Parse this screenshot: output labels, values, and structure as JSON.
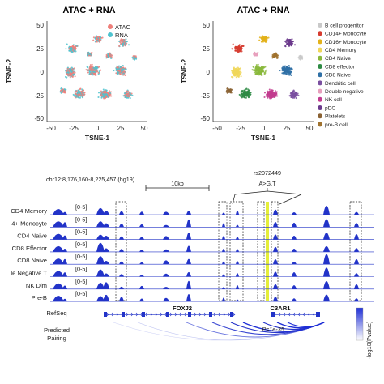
{
  "panels": {
    "left": {
      "title": "ATAC + RNA",
      "x_label": "TSNE-1",
      "y_label": "TSNE-2",
      "x_ticks": [
        "-50",
        "-25",
        "0",
        "25",
        "50"
      ],
      "y_ticks": [
        "50",
        "25",
        "0",
        "-25",
        "-50"
      ],
      "legend": [
        {
          "label": "ATAC",
          "color": "#ef7f7a"
        },
        {
          "label": "RNA",
          "color": "#4ec3cf"
        }
      ]
    },
    "right": {
      "title": "ATAC + RNA",
      "x_label": "TSNE-1",
      "y_label": "TSNE-2",
      "x_ticks": [
        "-50",
        "-25",
        "0",
        "25",
        "50"
      ],
      "y_ticks": [
        "50",
        "25",
        "0",
        "-25",
        "-50"
      ],
      "legend": [
        {
          "label": "B cell progenitor",
          "color": "#c9c9c9"
        },
        {
          "label": "CD14+ Monocyte",
          "color": "#d63b2f"
        },
        {
          "label": "CD16+ Monocyte",
          "color": "#e3b21a"
        },
        {
          "label": "CD4 Memory",
          "color": "#f0d75a"
        },
        {
          "label": "CD4 Naive",
          "color": "#8ab83c"
        },
        {
          "label": "CD8 effector",
          "color": "#2e8b44"
        },
        {
          "label": "CD8 Naive",
          "color": "#2f70a6"
        },
        {
          "label": "Dendritic cell",
          "color": "#7a4fa0"
        },
        {
          "label": "Double negative",
          "color": "#e8a0bd"
        },
        {
          "label": "NK cell",
          "color": "#c23b8e"
        },
        {
          "label": "pDC",
          "color": "#6b3a8c"
        },
        {
          "label": "Platelets",
          "color": "#8a6233"
        },
        {
          "label": "pre-B cell",
          "color": "#a0722e"
        }
      ]
    }
  },
  "browser": {
    "coordinates": "chr12:8,176,160-8,225,457 (hg19)",
    "scale_label": "10kb",
    "snp_id": "rs2072449",
    "snp_allele": "A>G,T",
    "track_range": "[0-5]",
    "track_color": "#2233c8",
    "tracks": [
      {
        "label": "CD4 Memory",
        "range": "[0-5]"
      },
      {
        "label": "4+ Monocyte",
        "range": "[0-5]"
      },
      {
        "label": "CD4 Naive",
        "range": "[0-5]"
      },
      {
        "label": "CD8 Effector",
        "range": "[0-5]"
      },
      {
        "label": "CD8 Naive",
        "range": "[0-5]"
      },
      {
        "label": "le Negative T",
        "range": "[0-5]"
      },
      {
        "label": "NK Dim",
        "range": "[0-5]"
      },
      {
        "label": "Pre-B",
        "range": "[0-5]"
      }
    ],
    "refseq_label": "RefSeq",
    "genes": [
      "FOXJ2",
      "C3AR1"
    ],
    "pairing_label_1": "Predicted",
    "pairing_label_2": "Pairing",
    "pvalue_annotation": "P=1e-35",
    "colorbar_label": "-log10(Pvalue)"
  }
}
